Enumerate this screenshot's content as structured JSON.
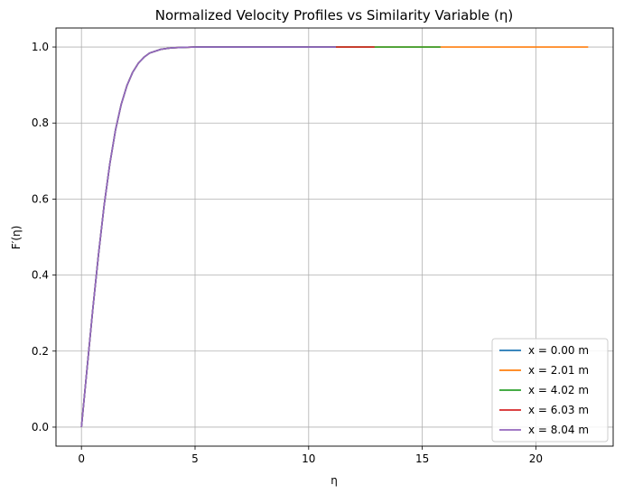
{
  "chart_data": {
    "type": "line",
    "title": "Normalized Velocity Profiles vs Similarity Variable (η)",
    "xlabel": "η",
    "ylabel": "F′(η)",
    "xlim": [
      -1.12,
      23.4
    ],
    "ylim": [
      -0.05,
      1.05
    ],
    "xticks": [
      0,
      5,
      10,
      15,
      20
    ],
    "yticks": [
      0.0,
      0.2,
      0.4,
      0.6,
      0.8,
      1.0
    ],
    "xtick_labels": [
      "0",
      "5",
      "10",
      "15",
      "20"
    ],
    "ytick_labels": [
      "0.0",
      "0.2",
      "0.4",
      "0.6",
      "0.8",
      "1.0"
    ],
    "grid": true,
    "legend_position": "bottom-right",
    "series": [
      {
        "name": "x = 0.00 m",
        "color": "#1f77b4",
        "eta_max": 11.2
      },
      {
        "name": "x = 2.01 m",
        "color": "#ff7f0e",
        "eta_max": 22.3
      },
      {
        "name": "x = 4.02 m",
        "color": "#2ca02c",
        "eta_max": 15.8
      },
      {
        "name": "x = 6.03 m",
        "color": "#d62728",
        "eta_max": 12.9
      },
      {
        "name": "x = 8.04 m",
        "color": "#9467bd",
        "eta_max": 11.2
      }
    ],
    "profile": {
      "x": [
        0,
        0.25,
        0.5,
        0.75,
        1.0,
        1.25,
        1.5,
        1.75,
        2.0,
        2.25,
        2.5,
        2.75,
        3.0,
        3.5,
        4.0,
        4.5,
        5.0,
        6.0
      ],
      "y": [
        0,
        0.156,
        0.31,
        0.454,
        0.584,
        0.693,
        0.782,
        0.849,
        0.898,
        0.933,
        0.957,
        0.973,
        0.984,
        0.994,
        0.998,
        0.999,
        1.0,
        1.0
      ]
    }
  }
}
